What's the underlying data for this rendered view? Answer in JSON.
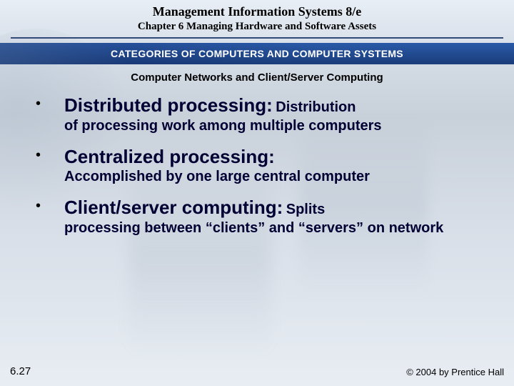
{
  "header": {
    "title": "Management Information Systems 8/e",
    "chapter": "Chapter 6 Managing Hardware and Software Assets",
    "banner": "CATEGORIES OF COMPUTERS AND COMPUTER SYSTEMS",
    "subhead": "Computer Networks and Client/Server Computing"
  },
  "bullets": [
    {
      "term": "Distributed processing:",
      "desc_inline": "Distribution",
      "desc_rest": "of processing work among multiple computers"
    },
    {
      "term": "Centralized processing:",
      "desc_inline": "",
      "desc_rest": "Accomplished by one large central computer"
    },
    {
      "term": "Client/server computing:",
      "desc_inline": "Splits",
      "desc_rest": "processing between “clients” and “servers” on network"
    }
  ],
  "footer": {
    "slide_number": "6.27",
    "copyright": "© 2004 by Prentice Hall"
  },
  "style": {
    "banner_bg": "#1a3d7a",
    "text_color": "#000033",
    "title_fontsize_pt": 18,
    "term_fontsize_pt": 26,
    "desc_fontsize_pt": 20
  }
}
